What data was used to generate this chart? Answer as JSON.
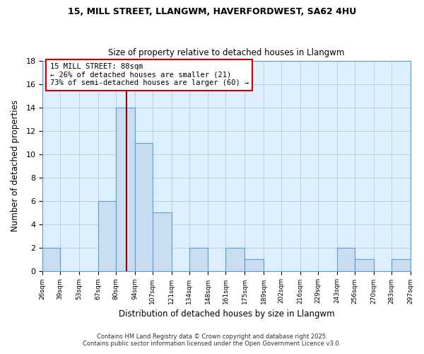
{
  "title1": "15, MILL STREET, LLANGWM, HAVERFORDWEST, SA62 4HU",
  "title2": "Size of property relative to detached houses in Llangwm",
  "xlabel": "Distribution of detached houses by size in Llangwm",
  "ylabel": "Number of detached properties",
  "bin_edges": [
    26,
    39,
    53,
    67,
    80,
    94,
    107,
    121,
    134,
    148,
    161,
    175,
    189,
    202,
    216,
    229,
    243,
    256,
    270,
    283,
    297
  ],
  "bin_labels": [
    "26sqm",
    "39sqm",
    "53sqm",
    "67sqm",
    "80sqm",
    "94sqm",
    "107sqm",
    "121sqm",
    "134sqm",
    "148sqm",
    "161sqm",
    "175sqm",
    "189sqm",
    "202sqm",
    "216sqm",
    "229sqm",
    "243sqm",
    "256sqm",
    "270sqm",
    "283sqm",
    "297sqm"
  ],
  "counts": [
    2,
    0,
    0,
    6,
    14,
    11,
    5,
    0,
    2,
    0,
    2,
    1,
    0,
    0,
    0,
    0,
    2,
    1,
    0,
    1
  ],
  "bar_color": "#c9ddf0",
  "bar_edge_color": "#5b9bd5",
  "vline_x": 88,
  "vline_color": "#8b0000",
  "annotation_title": "15 MILL STREET: 88sqm",
  "annotation_line1": "← 26% of detached houses are smaller (21)",
  "annotation_line2": "73% of semi-detached houses are larger (60) →",
  "annotation_box_color": "#ffffff",
  "annotation_box_edge": "#cc0000",
  "grid_color": "#c9ddf0",
  "plot_bg_color": "#ddeeff",
  "fig_bg_color": "#ffffff",
  "ylim": [
    0,
    18
  ],
  "yticks": [
    0,
    2,
    4,
    6,
    8,
    10,
    12,
    14,
    16,
    18
  ],
  "footer1": "Contains HM Land Registry data © Crown copyright and database right 2025.",
  "footer2": "Contains public sector information licensed under the Open Government Licence v3.0."
}
